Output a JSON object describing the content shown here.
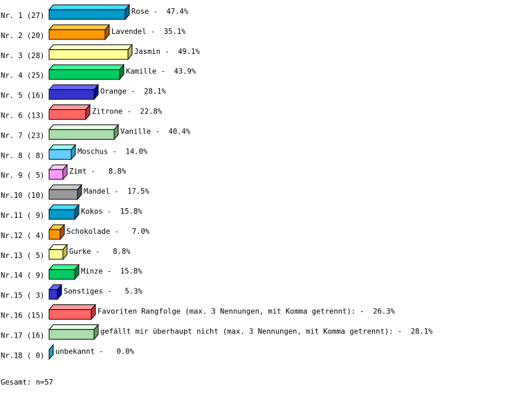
{
  "chart_data": {
    "type": "bar",
    "orientation": "horizontal",
    "style": "3d",
    "grid": false,
    "legend": "none",
    "xlim": [
      0,
      100
    ],
    "rows": [
      {
        "rank": "Nr. 1",
        "count": 27,
        "label": "Rose",
        "percent": 47.4
      },
      {
        "rank": "Nr. 2",
        "count": 20,
        "label": "Lavendel",
        "percent": 35.1
      },
      {
        "rank": "Nr. 3",
        "count": 28,
        "label": "Jasmin",
        "percent": 49.1
      },
      {
        "rank": "Nr. 4",
        "count": 25,
        "label": "Kamille",
        "percent": 43.9
      },
      {
        "rank": "Nr. 5",
        "count": 16,
        "label": "Orange",
        "percent": 28.1
      },
      {
        "rank": "Nr. 6",
        "count": 13,
        "label": "Zitrone",
        "percent": 22.8
      },
      {
        "rank": "Nr. 7",
        "count": 23,
        "label": "Vanille",
        "percent": 40.4
      },
      {
        "rank": "Nr. 8",
        "count": 8,
        "label": "Moschus",
        "percent": 14.0
      },
      {
        "rank": "Nr. 9",
        "count": 5,
        "label": "Zimt",
        "percent": 8.8
      },
      {
        "rank": "Nr.10",
        "count": 10,
        "label": "Mandel",
        "percent": 17.5
      },
      {
        "rank": "Nr.11",
        "count": 9,
        "label": "Kokos",
        "percent": 15.8
      },
      {
        "rank": "Nr.12",
        "count": 4,
        "label": "Schokolade",
        "percent": 7.0
      },
      {
        "rank": "Nr.13",
        "count": 5,
        "label": "Gurke",
        "percent": 8.8
      },
      {
        "rank": "Nr.14",
        "count": 9,
        "label": "Minze",
        "percent": 15.8
      },
      {
        "rank": "Nr.15",
        "count": 3,
        "label": "Sonstiges",
        "percent": 5.3
      },
      {
        "rank": "Nr.16",
        "count": 15,
        "label": "Favoriten Rangfolge (max. 3 Nennungen, mit Komma getrennt):",
        "percent": 26.3
      },
      {
        "rank": "Nr.17",
        "count": 16,
        "label": "gefällt mir überhaupt nicht (max. 3 Nennungen, mit Komma getrennt):",
        "percent": 28.1
      },
      {
        "rank": "Nr.18",
        "count": 0,
        "label": "unbekannt",
        "percent": 0.0
      }
    ],
    "palette": [
      {
        "front": "#0099cc",
        "top": "#44ddff",
        "side": "#006699"
      },
      {
        "front": "#ff9900",
        "top": "#ffcc33",
        "side": "#b35900"
      },
      {
        "front": "#ffff99",
        "top": "#ffffcc",
        "side": "#bbbb55"
      },
      {
        "front": "#00cc66",
        "top": "#33ff99",
        "side": "#008833"
      },
      {
        "front": "#3333cc",
        "top": "#6666ff",
        "side": "#000099"
      },
      {
        "front": "#ff6666",
        "top": "#ff9999",
        "side": "#cc3333"
      },
      {
        "front": "#aaddaa",
        "top": "#e8ffe8",
        "side": "#669966"
      },
      {
        "front": "#66ccff",
        "top": "#99ffff",
        "side": "#3399cc"
      },
      {
        "front": "#ff99ff",
        "top": "#ffccff",
        "side": "#cc66cc"
      },
      {
        "front": "#999999",
        "top": "#cccccc",
        "side": "#555555"
      }
    ]
  },
  "footer": {
    "total": "Gesamt: n=57"
  }
}
